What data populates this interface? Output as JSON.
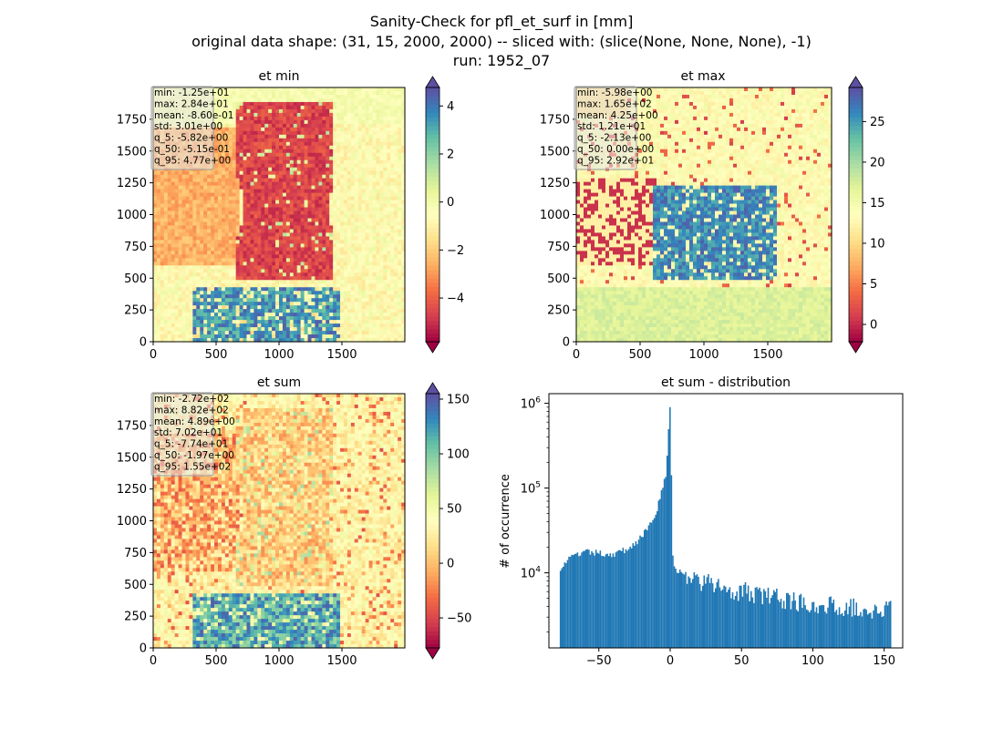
{
  "figure": {
    "title_lines": [
      "Sanity-Check for pfl_et_surf in [mm]",
      "original data shape: (31, 15, 2000, 2000) -- sliced with: (slice(None, None, None), -1)",
      "run: 1952_07"
    ]
  },
  "chart_data": [
    {
      "type": "heatmap",
      "title": "et min",
      "xlim": [
        0,
        2000
      ],
      "ylim": [
        0,
        2000
      ],
      "xticks": [
        0,
        500,
        1000,
        1500
      ],
      "yticks": [
        0,
        250,
        500,
        750,
        1000,
        1250,
        1500,
        1750
      ],
      "colormap": "Spectral",
      "colorbar": {
        "vmin": -5.82,
        "vmax": 4.77,
        "ticks": [
          -4,
          -2,
          0,
          2,
          4
        ],
        "tick_labels": [
          "−4",
          "−2",
          "0",
          "2",
          "4"
        ]
      },
      "stats": [
        "min: -1.25e+01",
        "max: 2.84e+01",
        "mean: -8.60e-01",
        "std: 3.01e+00",
        "q_5: -5.82e+00",
        "q_50: -5.15e-01",
        "q_95: 4.77e+00"
      ]
    },
    {
      "type": "heatmap",
      "title": "et max",
      "xlim": [
        0,
        2000
      ],
      "ylim": [
        0,
        2000
      ],
      "xticks": [
        0,
        500,
        1000,
        1500
      ],
      "yticks": [
        0,
        250,
        500,
        750,
        1000,
        1250,
        1500,
        1750
      ],
      "colormap": "Spectral",
      "colorbar": {
        "vmin": -2.13,
        "vmax": 29.2,
        "ticks": [
          0,
          5,
          10,
          15,
          20,
          25
        ],
        "tick_labels": [
          "0",
          "5",
          "10",
          "15",
          "20",
          "25"
        ]
      },
      "stats": [
        "min: -5.98e+00",
        "max: 1.65e+02",
        "mean: 4.25e+00",
        "std: 1.21e+01",
        "q_5: -2.13e+00",
        "q_50: 0.00e+00",
        "q_95: 2.92e+01"
      ]
    },
    {
      "type": "heatmap",
      "title": "et sum",
      "xlim": [
        0,
        2000
      ],
      "ylim": [
        0,
        2000
      ],
      "xticks": [
        0,
        500,
        1000,
        1500
      ],
      "yticks": [
        0,
        250,
        500,
        750,
        1000,
        1250,
        1500,
        1750
      ],
      "colormap": "Spectral",
      "colorbar": {
        "vmin": -77.4,
        "vmax": 155,
        "ticks": [
          -50,
          0,
          50,
          100,
          150
        ],
        "tick_labels": [
          "−50",
          "0",
          "50",
          "100",
          "150"
        ]
      },
      "stats": [
        "min: -2.72e+02",
        "max: 8.82e+02",
        "mean: 4.89e+00",
        "std: 7.02e+01",
        "q_5: -7.74e+01",
        "q_50: -1.97e+00",
        "q_95: 1.55e+02"
      ]
    },
    {
      "type": "bar",
      "title": "et sum - distribution",
      "ylabel": "# of occurrence",
      "xlabel": "",
      "yscale": "log",
      "xlim": [
        -85,
        163
      ],
      "ylim": [
        1300,
        1300000
      ],
      "xticks": [
        -50,
        0,
        50,
        100,
        150
      ],
      "xtick_labels": [
        "−50",
        "0",
        "50",
        "100",
        "150"
      ],
      "ytick_labels": [
        "10^4",
        "10^5",
        "10^6"
      ],
      "bar_color": "#1f77b4",
      "bin_range": [
        -77.4,
        155
      ],
      "bin_count": 233,
      "peak": {
        "x": 0,
        "count": 900000
      },
      "description_points": [
        {
          "x": -77,
          "count": 11500
        },
        {
          "x": -70,
          "count": 15000
        },
        {
          "x": -60,
          "count": 17500
        },
        {
          "x": -50,
          "count": 17000
        },
        {
          "x": -40,
          "count": 16500
        },
        {
          "x": -30,
          "count": 19000
        },
        {
          "x": -20,
          "count": 26000
        },
        {
          "x": -10,
          "count": 50000
        },
        {
          "x": -3,
          "count": 150000
        },
        {
          "x": 0,
          "count": 900000
        },
        {
          "x": 2,
          "count": 12000
        },
        {
          "x": 10,
          "count": 9000
        },
        {
          "x": 25,
          "count": 7500
        },
        {
          "x": 50,
          "count": 6000
        },
        {
          "x": 75,
          "count": 5000
        },
        {
          "x": 100,
          "count": 4300
        },
        {
          "x": 125,
          "count": 3900
        },
        {
          "x": 155,
          "count": 3600
        }
      ]
    }
  ]
}
